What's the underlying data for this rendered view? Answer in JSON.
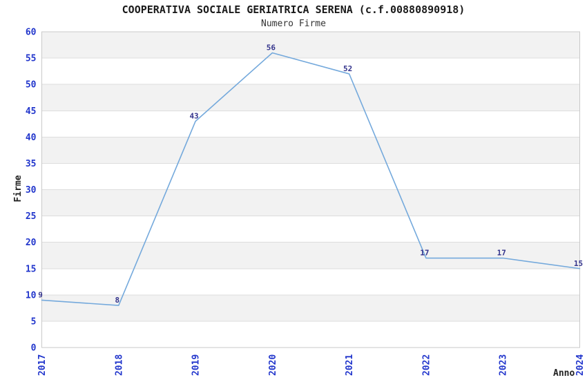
{
  "chart_data": {
    "type": "line",
    "title": "COOPERATIVA SOCIALE GERIATRICA SERENA (c.f.00880890918)",
    "subtitle": "Numero Firme",
    "xlabel": "Anno",
    "ylabel": "Firme",
    "categories": [
      "2017",
      "2018",
      "2019",
      "2020",
      "2021",
      "2022",
      "2023",
      "2024"
    ],
    "series": [
      {
        "name": "Numero Firme",
        "values": [
          9,
          8,
          43,
          56,
          52,
          17,
          17,
          15
        ]
      }
    ],
    "ylim": [
      0,
      60
    ],
    "ytick_step": 5,
    "grid": true,
    "band_fill": "alternating-horizontal",
    "legend_position": "none",
    "x_tick_rotation": -90
  },
  "style": {
    "background": "#ffffff",
    "line_color": "#74a9dc",
    "tick_label_color": "#2236cc",
    "data_label_color": "#34348c",
    "title_color": "#1a1a1a",
    "subtitle_color": "#333333",
    "axis_label_color": "#222222",
    "band_color": "#f2f2f2",
    "band_alt_color": "#ffffff",
    "grid_color": "#dddddd",
    "border_color": "#c9c9c9"
  }
}
